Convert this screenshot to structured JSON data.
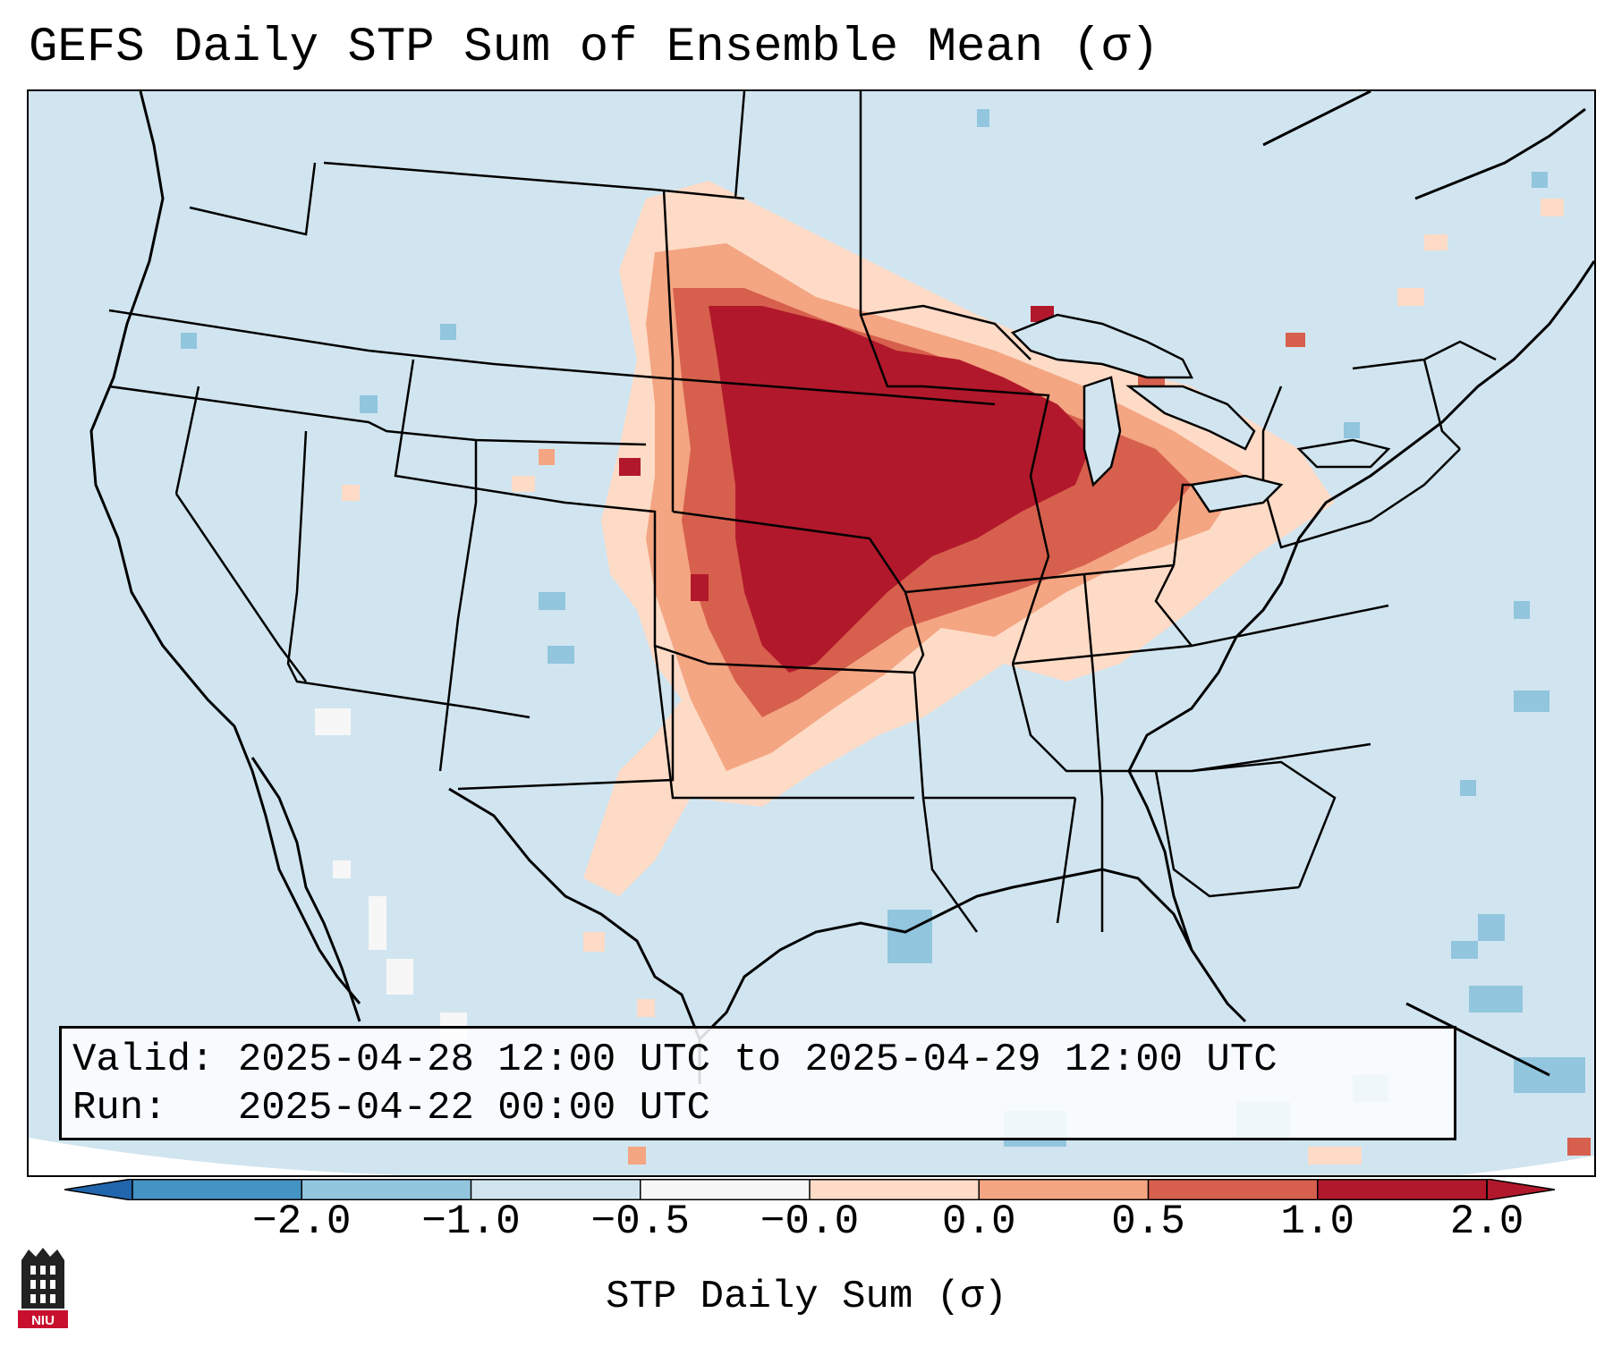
{
  "title": "GEFS Daily STP Sum of Ensemble Mean (σ)",
  "info": {
    "valid_label": "Valid:",
    "valid_value": "2025-04-28 12:00 UTC to 2025-04-29 12:00 UTC",
    "run_label": "Run:",
    "run_value": "2025-04-22 00:00 UTC"
  },
  "colorbar": {
    "label": "STP Daily Sum (σ)",
    "ticks": [
      "−2.0",
      "−1.0",
      "−0.5",
      "−0.0",
      "0.0",
      "0.5",
      "1.0",
      "2.0"
    ],
    "colors": [
      "#4393c3",
      "#92c5de",
      "#d1e5f0",
      "#f7f7f7",
      "#fddbc7",
      "#f4a582",
      "#d6604d",
      "#b2182b"
    ],
    "extend_low_color": "#2166ac",
    "extend_high_color": "#b2182b"
  },
  "legend_logo": {
    "text": "NIU",
    "bg_color": "#c8102e"
  },
  "map": {
    "background_color": "#d1e5f0",
    "region": "Contiguous United States",
    "field": "STP daily sum anomaly (σ)",
    "max_anomaly_area": "Upper Midwest / Central Plains"
  }
}
